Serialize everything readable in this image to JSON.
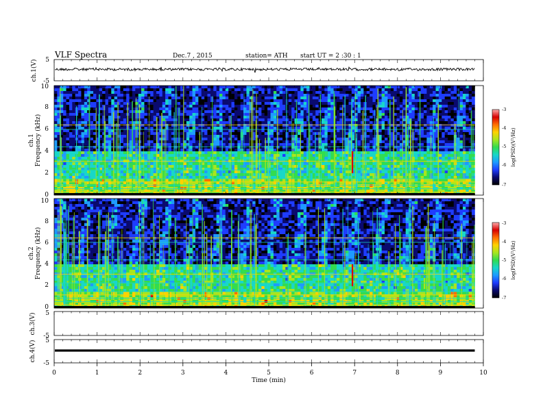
{
  "header": {
    "title": "VLF  Spectra",
    "date": "Dec.7  , 2015",
    "station": "station= ATH",
    "start_ut": "start  UT  =   2  :30 : 1"
  },
  "chart_data": [
    {
      "type": "line",
      "name": "ch1-waveform",
      "ylabel": "ch.1(V)",
      "ylim": [
        -5,
        5
      ],
      "yticks": [
        "5",
        "-5"
      ],
      "x_range_min": [
        0,
        9.8
      ],
      "approx_level": 0.4,
      "noise_amplitude": 0.6
    },
    {
      "type": "heatmap",
      "name": "ch1-spectrogram",
      "ylabel_lines": [
        "ch.1",
        "Frequency  (kHz)"
      ],
      "ylim": [
        0,
        10
      ],
      "yticks": [
        "0",
        "2",
        "4",
        "6",
        "8",
        "10"
      ],
      "colorbar": {
        "label": "log(PSD)(V²/Hz)",
        "range": [
          -7,
          -3
        ],
        "ticks": [
          "-3",
          "-4",
          "-5",
          "-6",
          "-7"
        ]
      },
      "prominent_spike_min": 6.95,
      "spike_frequency_range_khz": [
        2,
        4
      ]
    },
    {
      "type": "heatmap",
      "name": "ch2-spectrogram",
      "ylabel_lines": [
        "ch.2",
        "Frequency  (kHz)"
      ],
      "ylim": [
        0,
        10
      ],
      "yticks": [
        "0",
        "2",
        "4",
        "6",
        "8",
        "10"
      ],
      "colorbar": {
        "label": "log(PSD)(V²/Hz)",
        "range": [
          -7,
          -3
        ],
        "ticks": [
          "-3",
          "-4",
          "-5",
          "-6",
          "-7"
        ]
      },
      "prominent_spike_min": 6.95,
      "spike_frequency_range_khz": [
        2,
        4
      ]
    },
    {
      "type": "line",
      "name": "ch3-waveform",
      "ylabel": "ch.3(V)",
      "ylim": [
        -5,
        5
      ],
      "yticks": [
        "5",
        "-5"
      ],
      "approx_level": null
    },
    {
      "type": "line",
      "name": "ch4-waveform",
      "ylabel": "ch.4(V)",
      "ylim": [
        -5,
        5
      ],
      "yticks": [
        "5",
        "-5"
      ],
      "x_range_min": [
        0,
        9.8
      ],
      "approx_level": 0.0
    }
  ],
  "xaxis": {
    "label": "Time  (min)",
    "range": [
      0,
      10
    ],
    "ticks": [
      "0",
      "1",
      "2",
      "3",
      "4",
      "5",
      "6",
      "7",
      "8",
      "9",
      "10"
    ]
  },
  "colors": {
    "background": "#ffffff",
    "trace": "#000000",
    "colormap": [
      "#000000",
      "#0a0a6e",
      "#1e3cff",
      "#1e9bff",
      "#18d7c8",
      "#32dc50",
      "#a8e61e",
      "#ffd200",
      "#ff6e00",
      "#d70000",
      "#ffaaaa"
    ]
  }
}
